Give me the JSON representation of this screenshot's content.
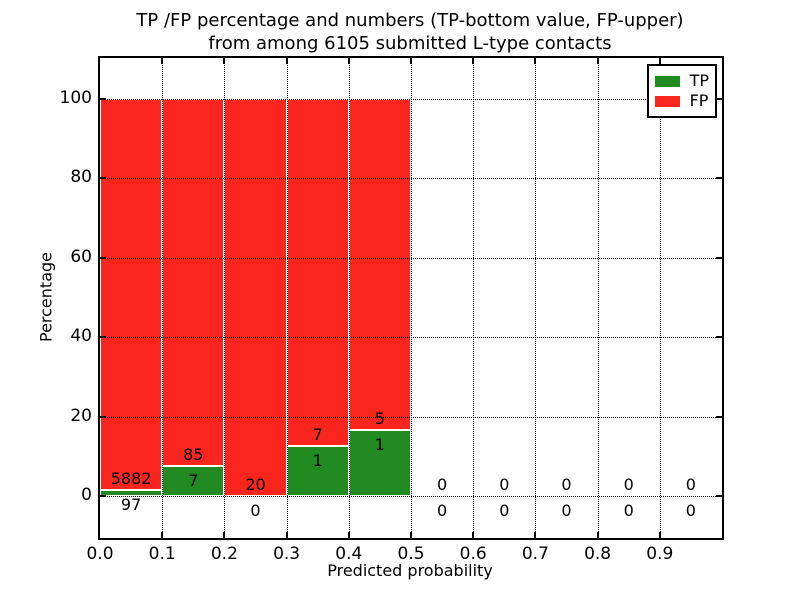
{
  "figure": {
    "background": "#ffffff"
  },
  "chart_data": {
    "type": "bar",
    "stacked": true,
    "title_line1": "TP /FP percentage and numbers (TP-bottom value, FP-upper)",
    "title_line2": "from among 6105 submitted L-type contacts",
    "title": "TP /FP percentage and numbers (TP-bottom value, FP-upper)\nfrom among 6105 submitted L-type contacts",
    "total_submitted": 6105,
    "xlabel": "Predicted probability",
    "ylabel": "Percentage",
    "xlim": [
      0.0,
      1.0
    ],
    "ylim": [
      -10.55,
      110.25
    ],
    "grid": true,
    "grid_style": "dotted",
    "legend_position": "upper right",
    "series": [
      {
        "name": "TP",
        "color": "#218a21"
      },
      {
        "name": "FP",
        "color": "#fa251c"
      }
    ],
    "xticks": [
      {
        "v": 0.0,
        "label": "0.0"
      },
      {
        "v": 0.1,
        "label": "0.1"
      },
      {
        "v": 0.2,
        "label": "0.2"
      },
      {
        "v": 0.3,
        "label": "0.3"
      },
      {
        "v": 0.4,
        "label": "0.4"
      },
      {
        "v": 0.5,
        "label": "0.5"
      },
      {
        "v": 0.6,
        "label": "0.6"
      },
      {
        "v": 0.7,
        "label": "0.7"
      },
      {
        "v": 0.8,
        "label": "0.8"
      },
      {
        "v": 0.9,
        "label": "0.9"
      }
    ],
    "yticks": [
      {
        "v": 0,
        "label": "0"
      },
      {
        "v": 20,
        "label": "20"
      },
      {
        "v": 40,
        "label": "40"
      },
      {
        "v": 60,
        "label": "60"
      },
      {
        "v": 80,
        "label": "80"
      },
      {
        "v": 100,
        "label": "100"
      }
    ],
    "bins": [
      {
        "range": [
          0.0,
          0.1
        ],
        "tp_count": 97,
        "fp_count": 5882,
        "tp_pct": 1.62,
        "fp_pct": 98.38
      },
      {
        "range": [
          0.1,
          0.2
        ],
        "tp_count": 7,
        "fp_count": 85,
        "tp_pct": 7.61,
        "fp_pct": 92.39
      },
      {
        "range": [
          0.2,
          0.3
        ],
        "tp_count": 0,
        "fp_count": 20,
        "tp_pct": 0.0,
        "fp_pct": 100.0
      },
      {
        "range": [
          0.3,
          0.4
        ],
        "tp_count": 1,
        "fp_count": 7,
        "tp_pct": 12.5,
        "fp_pct": 87.5
      },
      {
        "range": [
          0.4,
          0.5
        ],
        "tp_count": 1,
        "fp_count": 5,
        "tp_pct": 16.67,
        "fp_pct": 83.33
      },
      {
        "range": [
          0.5,
          0.6
        ],
        "tp_count": 0,
        "fp_count": 0,
        "tp_pct": 0.0,
        "fp_pct": 0.0
      },
      {
        "range": [
          0.6,
          0.7
        ],
        "tp_count": 0,
        "fp_count": 0,
        "tp_pct": 0.0,
        "fp_pct": 0.0
      },
      {
        "range": [
          0.7,
          0.8
        ],
        "tp_count": 0,
        "fp_count": 0,
        "tp_pct": 0.0,
        "fp_pct": 0.0
      },
      {
        "range": [
          0.8,
          0.9
        ],
        "tp_count": 0,
        "fp_count": 0,
        "tp_pct": 0.0,
        "fp_pct": 0.0
      },
      {
        "range": [
          0.9,
          1.0
        ],
        "tp_count": 0,
        "fp_count": 0,
        "tp_pct": 0.0,
        "fp_pct": 0.0
      }
    ]
  }
}
